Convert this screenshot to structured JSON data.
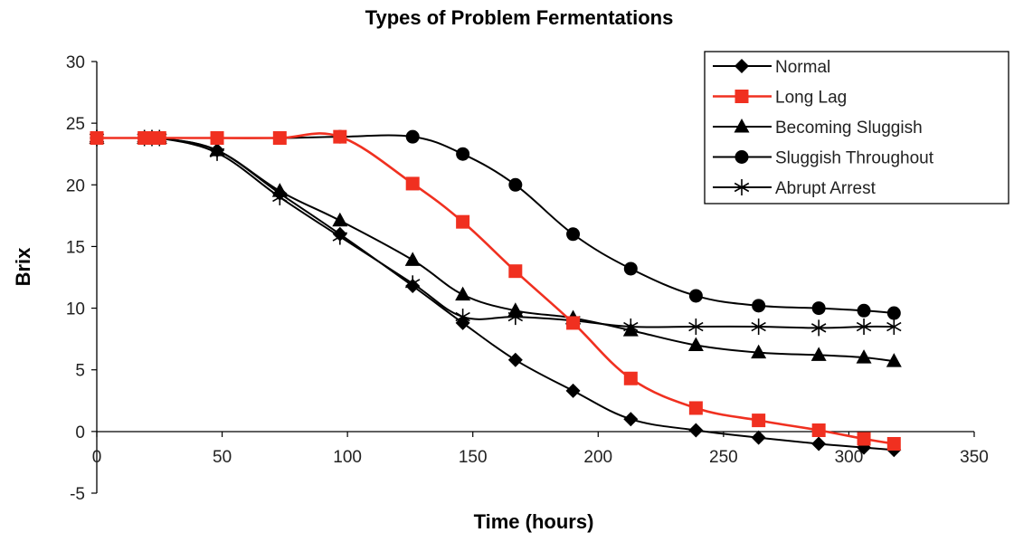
{
  "chart_data": {
    "type": "line",
    "title": "Types of Problem Fermentations",
    "xlabel": "Time (hours)",
    "ylabel": "Brix",
    "xlim": [
      0,
      350
    ],
    "ylim": [
      -5,
      30
    ],
    "x_ticks": [
      0,
      50,
      100,
      150,
      200,
      250,
      300,
      350
    ],
    "y_ticks": [
      -5,
      0,
      5,
      10,
      15,
      20,
      25,
      30
    ],
    "grid": false,
    "legend_position": "top-right",
    "series": [
      {
        "name": "Normal",
        "color": "#000000",
        "marker": "diamond",
        "x": [
          0,
          19,
          22,
          25,
          48,
          73,
          97,
          126,
          146,
          167,
          190,
          213,
          239,
          264,
          288,
          306,
          318
        ],
        "y": [
          23.8,
          23.8,
          23.8,
          23.8,
          22.8,
          19.3,
          16.0,
          11.8,
          8.8,
          5.8,
          3.3,
          1.0,
          0.1,
          -0.5,
          -1.0,
          -1.3,
          -1.5
        ]
      },
      {
        "name": "Long Lag",
        "color": "#f03020",
        "marker": "square",
        "x": [
          0,
          19,
          22,
          25,
          48,
          73,
          97,
          126,
          146,
          167,
          190,
          213,
          239,
          264,
          288,
          306,
          318
        ],
        "y": [
          23.8,
          23.8,
          23.8,
          23.8,
          23.8,
          23.8,
          23.9,
          20.1,
          17.0,
          13.0,
          8.8,
          4.3,
          1.9,
          0.9,
          0.1,
          -0.6,
          -1.0
        ]
      },
      {
        "name": "Becoming Sluggish",
        "color": "#000000",
        "marker": "triangle",
        "x": [
          0,
          19,
          22,
          25,
          48,
          73,
          97,
          126,
          146,
          167,
          190,
          213,
          239,
          264,
          288,
          306,
          318
        ],
        "y": [
          23.8,
          23.8,
          23.8,
          23.8,
          22.8,
          19.5,
          17.1,
          13.9,
          11.1,
          9.8,
          9.2,
          8.2,
          7.0,
          6.4,
          6.2,
          6.0,
          5.7
        ]
      },
      {
        "name": "Sluggish Throughout",
        "color": "#000000",
        "marker": "circle",
        "x": [
          0,
          19,
          22,
          25,
          48,
          73,
          97,
          126,
          146,
          167,
          190,
          213,
          239,
          264,
          288,
          306,
          318
        ],
        "y": [
          23.8,
          23.8,
          23.8,
          23.8,
          23.8,
          23.8,
          23.9,
          23.9,
          22.5,
          20.0,
          16.0,
          13.2,
          11.0,
          10.2,
          10.0,
          9.8,
          9.6
        ]
      },
      {
        "name": "Abrupt Arrest",
        "color": "#000000",
        "marker": "star",
        "x": [
          0,
          19,
          22,
          25,
          48,
          73,
          97,
          126,
          146,
          167,
          190,
          213,
          239,
          264,
          288,
          306,
          318
        ],
        "y": [
          23.8,
          23.8,
          23.8,
          23.8,
          22.6,
          19.0,
          15.8,
          12.0,
          9.3,
          9.3,
          9.0,
          8.5,
          8.5,
          8.5,
          8.4,
          8.5,
          8.5
        ]
      }
    ]
  }
}
